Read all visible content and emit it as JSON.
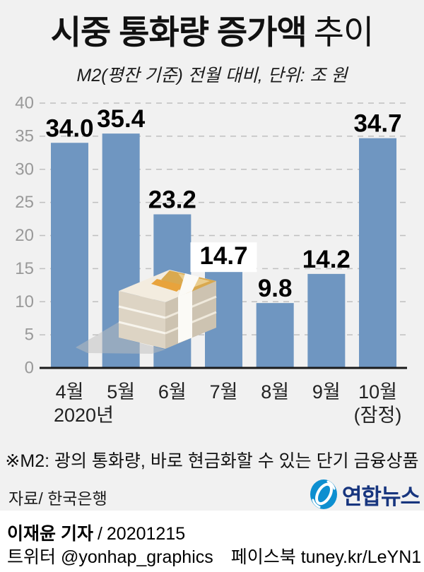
{
  "header": {
    "title_strong": "시중 통화량 증가액",
    "title_light": "추이",
    "subtitle": "M2(평잔 기준) 전월 대비, 단위: 조 원"
  },
  "chart_data": {
    "type": "bar",
    "categories": [
      "4월",
      "5월",
      "6월",
      "7월",
      "8월",
      "9월",
      "10월"
    ],
    "values": [
      34.0,
      35.4,
      23.2,
      14.7,
      9.8,
      14.2,
      34.7
    ],
    "value_labels": [
      "34.0",
      "35.4",
      "23.2",
      "14.7",
      "9.8",
      "14.2",
      "34.7"
    ],
    "year_label": "2020년",
    "last_category_note": "(잠정)",
    "title": "시중 통화량 증가액 추이",
    "unit": "조 원",
    "ylim": [
      0,
      40
    ],
    "yticks": [
      0,
      5,
      10,
      15,
      20,
      25,
      30,
      35,
      40
    ],
    "grid": "horizontal-dashed",
    "legend": "none"
  },
  "footnote": "※M2: 광의 통화량, 바로 현금화할 수 있는 단기 금융상품",
  "source": "자료/ 한국은행",
  "logo": {
    "text": "연합뉴스"
  },
  "footer": {
    "byline": "이재윤 기자",
    "separator": "/",
    "date": "20201215",
    "twitter_label": "트위터",
    "twitter_handle": "@yonhap_graphics",
    "facebook_label": "페이스북",
    "facebook_handle": "tuney.kr/LeYN1"
  },
  "colors": {
    "background": "#f1f1f1",
    "bar": "#6f96c1",
    "grid": "#c0c0c0",
    "axis": "#1a1a1a",
    "tick_text": "#999999",
    "value_text": "#000000",
    "month_text": "#222222",
    "value_label_bg": "#ffffff",
    "footer_bg": "#ffffff",
    "logo_blue": "#0d8fd0",
    "logo_navy": "#17357e"
  }
}
